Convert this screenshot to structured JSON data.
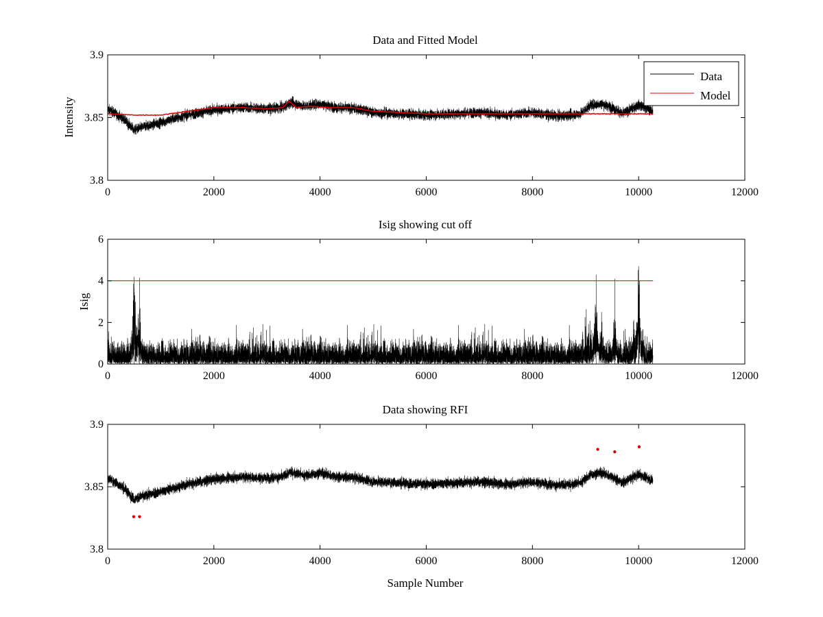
{
  "figure": {
    "background": "#ffffff"
  },
  "chart_data": [
    {
      "type": "line",
      "title": "Data and Fitted Model",
      "xlabel": "",
      "ylabel": "Intensity",
      "xlim": [
        0,
        12000
      ],
      "ylim": [
        3.8,
        3.9
      ],
      "xticks": [
        0,
        2000,
        4000,
        6000,
        8000,
        10000,
        12000
      ],
      "yticks": [
        3.8,
        3.85,
        3.9
      ],
      "xtick_labels": [
        "0",
        "2000",
        "4000",
        "6000",
        "8000",
        "10000",
        "12000"
      ],
      "ytick_labels": [
        "3.8",
        "3.85",
        "3.9"
      ],
      "grid": false,
      "legend": "top-right",
      "series": [
        {
          "name": "Data",
          "color": "#000000",
          "kind": "noisy",
          "x_range": [
            0,
            10270
          ],
          "samples": 10270,
          "base_x": [
            0,
            300,
            500,
            700,
            1000,
            1500,
            2000,
            2500,
            3000,
            3300,
            3450,
            3700,
            4000,
            4300,
            4700,
            5000,
            6000,
            6500,
            7000,
            7500,
            8000,
            8500,
            8900,
            9100,
            9300,
            9500,
            9700,
            10000,
            10270
          ],
          "base_y": [
            3.857,
            3.849,
            3.84,
            3.843,
            3.846,
            3.852,
            3.856,
            3.858,
            3.857,
            3.858,
            3.862,
            3.859,
            3.861,
            3.858,
            3.857,
            3.854,
            3.852,
            3.853,
            3.854,
            3.852,
            3.854,
            3.851,
            3.853,
            3.86,
            3.861,
            3.858,
            3.853,
            3.86,
            3.855
          ],
          "noise_amplitude": 0.007
        },
        {
          "name": "Model",
          "color": "#dd0000",
          "kind": "smooth",
          "x": [
            0,
            500,
            1000,
            1500,
            2000,
            2500,
            3000,
            3300,
            3420,
            3550,
            3800,
            4200,
            4600,
            5000,
            6000,
            7000,
            8000,
            9000,
            10270
          ],
          "y": [
            3.853,
            3.852,
            3.852,
            3.855,
            3.858,
            3.858,
            3.857,
            3.858,
            3.863,
            3.858,
            3.859,
            3.858,
            3.858,
            3.855,
            3.853,
            3.853,
            3.853,
            3.853,
            3.853
          ]
        }
      ]
    },
    {
      "type": "line",
      "title": "Isig showing cut off",
      "xlabel": "",
      "ylabel": "Isig",
      "xlim": [
        0,
        12000
      ],
      "ylim": [
        0,
        6
      ],
      "xticks": [
        0,
        2000,
        4000,
        6000,
        8000,
        10000,
        12000
      ],
      "yticks": [
        0,
        2,
        4,
        6
      ],
      "xtick_labels": [
        "0",
        "2000",
        "4000",
        "6000",
        "8000",
        "10000",
        "12000"
      ],
      "ytick_labels": [
        "0",
        "2",
        "4",
        "6"
      ],
      "grid": false,
      "series": [
        {
          "color": "#000000",
          "kind": "abs-noise",
          "x_range": [
            0,
            10270
          ],
          "samples": 10270,
          "scale": 0.85,
          "spikes": [
            {
              "x": 500,
              "y": 4.2
            },
            {
              "x": 600,
              "y": 4.15
            },
            {
              "x": 9200,
              "y": 4.3
            },
            {
              "x": 9550,
              "y": 4.1
            },
            {
              "x": 10000,
              "y": 4.7
            }
          ]
        },
        {
          "color": "#dd0000",
          "kind": "hline",
          "y": 4,
          "x_range": [
            0,
            10270
          ]
        }
      ]
    },
    {
      "type": "line",
      "title": "Data showing RFI",
      "xlabel": "Sample Number",
      "ylabel": "",
      "xlim": [
        0,
        12000
      ],
      "ylim": [
        3.8,
        3.9
      ],
      "xticks": [
        0,
        2000,
        4000,
        6000,
        8000,
        10000,
        12000
      ],
      "yticks": [
        3.8,
        3.85,
        3.9
      ],
      "xtick_labels": [
        "0",
        "2000",
        "4000",
        "6000",
        "8000",
        "10000",
        "12000"
      ],
      "ytick_labels": [
        "3.8",
        "3.85",
        "3.9"
      ],
      "grid": false,
      "series": [
        {
          "color": "#000000",
          "kind": "noisy",
          "x_range": [
            0,
            10270
          ],
          "samples": 10270,
          "base_x": [
            0,
            300,
            500,
            700,
            1000,
            1500,
            2000,
            2500,
            3000,
            3300,
            3450,
            3700,
            4000,
            4300,
            4700,
            5000,
            6000,
            6500,
            7000,
            7500,
            8000,
            8500,
            8900,
            9100,
            9300,
            9500,
            9700,
            10000,
            10270
          ],
          "base_y": [
            3.857,
            3.849,
            3.84,
            3.843,
            3.846,
            3.852,
            3.856,
            3.858,
            3.857,
            3.858,
            3.862,
            3.859,
            3.861,
            3.858,
            3.857,
            3.854,
            3.852,
            3.853,
            3.854,
            3.852,
            3.854,
            3.851,
            3.853,
            3.86,
            3.861,
            3.858,
            3.853,
            3.86,
            3.855
          ],
          "noise_amplitude": 0.007
        },
        {
          "color": "#dd0000",
          "kind": "markers",
          "x": [
            490,
            600,
            9230,
            9550,
            10010
          ],
          "y": [
            3.826,
            3.826,
            3.88,
            3.878,
            3.882
          ]
        }
      ]
    }
  ]
}
